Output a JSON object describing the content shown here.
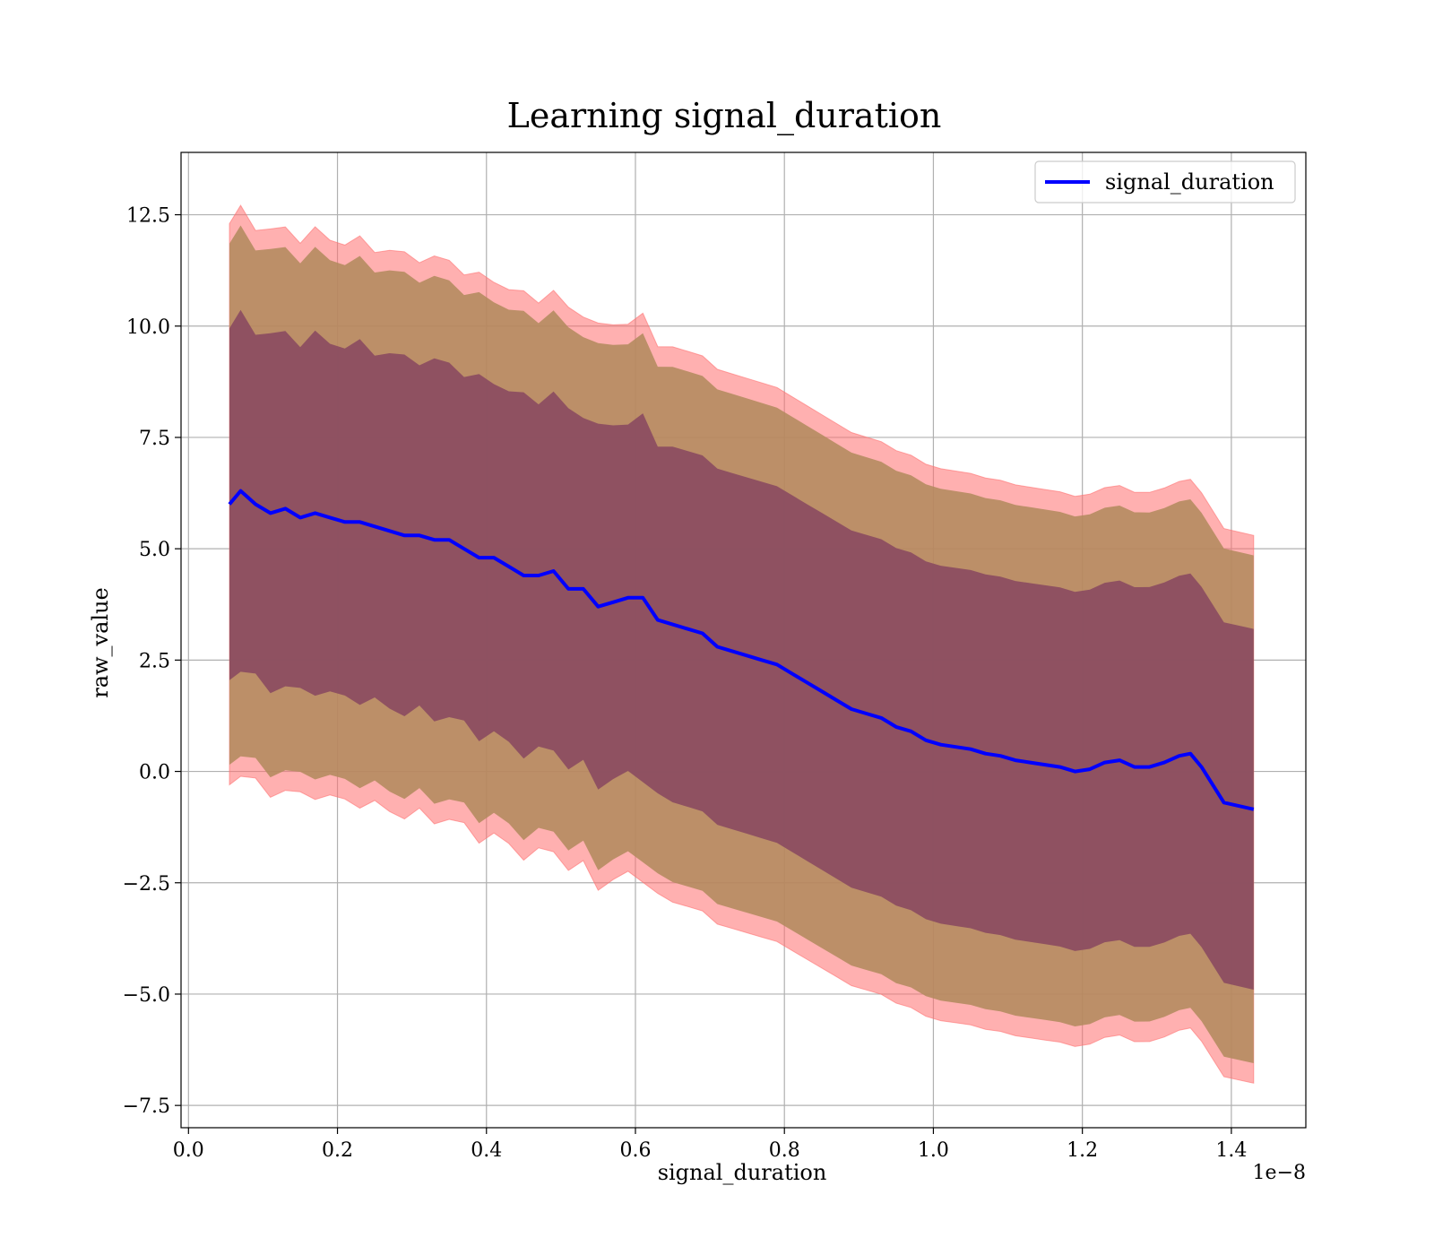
{
  "chart_data": {
    "type": "area",
    "title": "Learning signal_duration",
    "xlabel": "signal_duration",
    "ylabel": "raw_value",
    "x_offset_label": "1e−8",
    "xlim": [
      -0.01,
      1.5
    ],
    "ylim": [
      -8.0,
      13.9
    ],
    "x_ticks": [
      0.0,
      0.2,
      0.4,
      0.6,
      0.8,
      1.0,
      1.2,
      1.4
    ],
    "x_tick_labels": [
      "0.0",
      "0.2",
      "0.4",
      "0.6",
      "0.8",
      "1.0",
      "1.2",
      "1.4"
    ],
    "y_ticks": [
      -7.5,
      -5.0,
      -2.5,
      0.0,
      2.5,
      5.0,
      7.5,
      10.0,
      12.5
    ],
    "y_tick_labels": [
      "−7.5",
      "−5.0",
      "−2.5",
      "0.0",
      "2.5",
      "5.0",
      "7.5",
      "10.0",
      "12.5"
    ],
    "grid": true,
    "legend": {
      "position": "top-right",
      "entries": [
        {
          "label": "signal_duration",
          "color": "#0000ff"
        }
      ]
    },
    "colors": {
      "band_outer": "#ff6f6f",
      "band_middle": "#b08a5c",
      "band_inner": "#8a4a60",
      "mean_line": "#0000ff"
    },
    "series": [
      {
        "name": "signal_duration",
        "x": [
          0.055,
          0.07,
          0.09,
          0.11,
          0.13,
          0.15,
          0.17,
          0.19,
          0.21,
          0.23,
          0.25,
          0.27,
          0.29,
          0.31,
          0.33,
          0.35,
          0.37,
          0.39,
          0.41,
          0.43,
          0.45,
          0.47,
          0.49,
          0.51,
          0.53,
          0.55,
          0.57,
          0.59,
          0.61,
          0.63,
          0.65,
          0.67,
          0.69,
          0.71,
          0.73,
          0.75,
          0.77,
          0.79,
          0.81,
          0.83,
          0.85,
          0.87,
          0.89,
          0.91,
          0.93,
          0.95,
          0.97,
          0.99,
          1.01,
          1.03,
          1.05,
          1.07,
          1.09,
          1.11,
          1.13,
          1.15,
          1.17,
          1.19,
          1.21,
          1.23,
          1.25,
          1.27,
          1.29,
          1.31,
          1.33,
          1.345,
          1.36,
          1.39,
          1.43
        ],
        "y": [
          6.0,
          6.3,
          6.0,
          5.8,
          5.9,
          5.7,
          5.8,
          5.7,
          5.6,
          5.6,
          5.5,
          5.4,
          5.3,
          5.3,
          5.2,
          5.2,
          5.0,
          4.8,
          4.8,
          4.6,
          4.4,
          4.4,
          4.5,
          4.1,
          4.1,
          3.7,
          3.8,
          3.9,
          3.9,
          3.4,
          3.3,
          3.2,
          3.1,
          2.8,
          2.7,
          2.6,
          2.5,
          2.4,
          2.2,
          2.0,
          1.8,
          1.6,
          1.4,
          1.3,
          1.2,
          1.0,
          0.9,
          0.7,
          0.6,
          0.55,
          0.5,
          0.4,
          0.35,
          0.25,
          0.2,
          0.15,
          0.1,
          0.0,
          0.05,
          0.2,
          0.25,
          0.1,
          0.1,
          0.2,
          0.35,
          0.4,
          0.1,
          -0.7,
          -0.85
        ]
      }
    ]
  }
}
